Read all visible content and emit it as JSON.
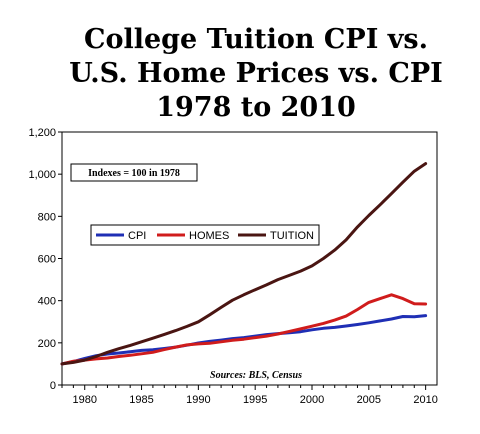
{
  "chart_data": {
    "type": "line",
    "title_lines": [
      "College Tuition CPI vs.",
      "U.S. Home Prices vs. CPI",
      "1978 to 2010"
    ],
    "annotation": "Indexes = 100 in 1978",
    "source": "Sources: BLS, Census",
    "xlim": [
      1978,
      2011
    ],
    "ylim": [
      0,
      1200
    ],
    "x_ticks": [
      1980,
      1985,
      1990,
      1995,
      2000,
      2005,
      2010
    ],
    "y_ticks": [
      0,
      200,
      400,
      600,
      800,
      1000,
      1200
    ],
    "y_tick_labels": [
      "0",
      "200",
      "400",
      "600",
      "800",
      "1,000",
      "1,200"
    ],
    "grid": false,
    "legend_position": "upper-left",
    "x": [
      1978,
      1979,
      1980,
      1981,
      1982,
      1983,
      1984,
      1985,
      1986,
      1987,
      1988,
      1989,
      1990,
      1991,
      1992,
      1993,
      1994,
      1995,
      1996,
      1997,
      1998,
      1999,
      2000,
      2001,
      2002,
      2003,
      2004,
      2005,
      2006,
      2007,
      2008,
      2009,
      2010
    ],
    "series": [
      {
        "name": "CPI",
        "color": "#1f2fb5",
        "values": [
          100,
          111,
          126,
          139,
          147,
          152,
          158,
          164,
          167,
          173,
          180,
          189,
          199,
          207,
          213,
          220,
          225,
          232,
          239,
          244,
          248,
          253,
          262,
          269,
          273,
          280,
          287,
          295,
          304,
          313,
          325,
          324,
          329
        ]
      },
      {
        "name": "HOMES",
        "color": "#d01c1c",
        "values": [
          100,
          113,
          118,
          124,
          128,
          135,
          141,
          148,
          155,
          168,
          180,
          190,
          195,
          198,
          205,
          212,
          217,
          225,
          232,
          242,
          254,
          266,
          279,
          292,
          308,
          327,
          358,
          392,
          410,
          428,
          410,
          385,
          384
        ]
      },
      {
        "name": "TUITION",
        "color": "#4a1512",
        "values": [
          100,
          107,
          118,
          135,
          155,
          172,
          188,
          205,
          222,
          240,
          258,
          278,
          300,
          333,
          368,
          402,
          428,
          452,
          475,
          500,
          520,
          540,
          565,
          600,
          640,
          688,
          750,
          804,
          855,
          908,
          962,
          1014,
          1050
        ]
      }
    ]
  }
}
